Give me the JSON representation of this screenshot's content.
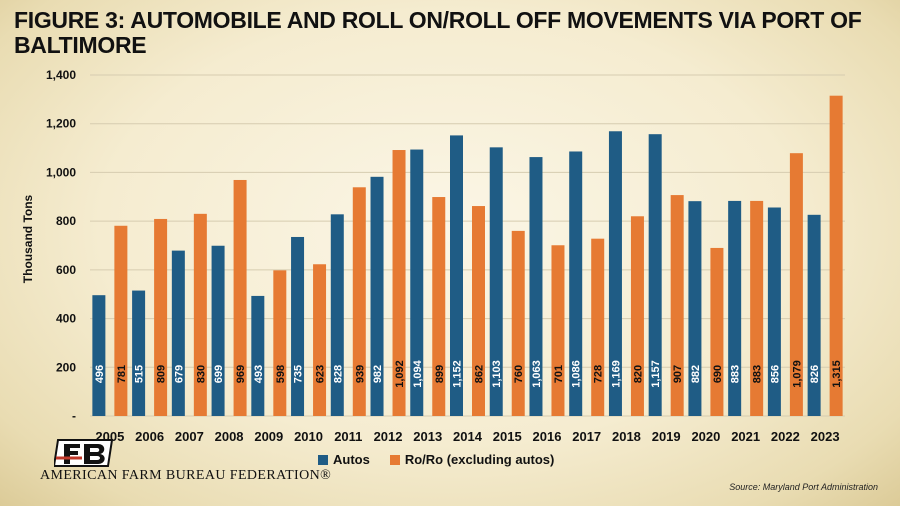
{
  "title": "FIGURE 3: AUTOMOBILE AND ROLL ON/ROLL OFF MOVEMENTS VIA PORT OF BALTIMORE",
  "source": "Source: Maryland Port Administration",
  "organization": "AMERICAN FARM BUREAU FEDERATION®",
  "logo_text": "FB",
  "colors": {
    "autos": "#1f5c85",
    "roro": "#e67a33",
    "grid": "#d6ccb0"
  },
  "chart_data": {
    "type": "bar",
    "ylabel": "Thousand Tons",
    "ylim": [
      0,
      1400
    ],
    "yticks": [
      "-",
      "200",
      "400",
      "600",
      "800",
      "1,000",
      "1,200",
      "1,400"
    ],
    "categories": [
      "2005",
      "2006",
      "2007",
      "2008",
      "2009",
      "2010",
      "2011",
      "2012",
      "2013",
      "2014",
      "2015",
      "2016",
      "2017",
      "2018",
      "2019",
      "2020",
      "2021",
      "2022",
      "2023"
    ],
    "series": [
      {
        "name": "Autos",
        "values": [
          496,
          515,
          679,
          699,
          493,
          735,
          828,
          982,
          1094,
          1152,
          1103,
          1063,
          1086,
          1169,
          1157,
          882,
          883,
          856,
          826
        ],
        "labels": [
          "496",
          "515",
          "679",
          "699",
          "493",
          "735",
          "828",
          "982",
          "1,094",
          "1,152",
          "1,103",
          "1,063",
          "1,086",
          "1,169",
          "1,157",
          "882",
          "883",
          "856",
          "826"
        ]
      },
      {
        "name": "Ro/Ro (excluding autos)",
        "values": [
          781,
          809,
          830,
          969,
          598,
          623,
          939,
          1092,
          899,
          862,
          760,
          701,
          728,
          820,
          907,
          690,
          883,
          1079,
          1315
        ],
        "labels": [
          "781",
          "809",
          "830",
          "969",
          "598",
          "623",
          "939",
          "1,092",
          "899",
          "862",
          "760",
          "701",
          "728",
          "820",
          "907",
          "690",
          "883",
          "1,079",
          "1,315"
        ]
      }
    ],
    "grid": true,
    "legend": "bottom"
  }
}
